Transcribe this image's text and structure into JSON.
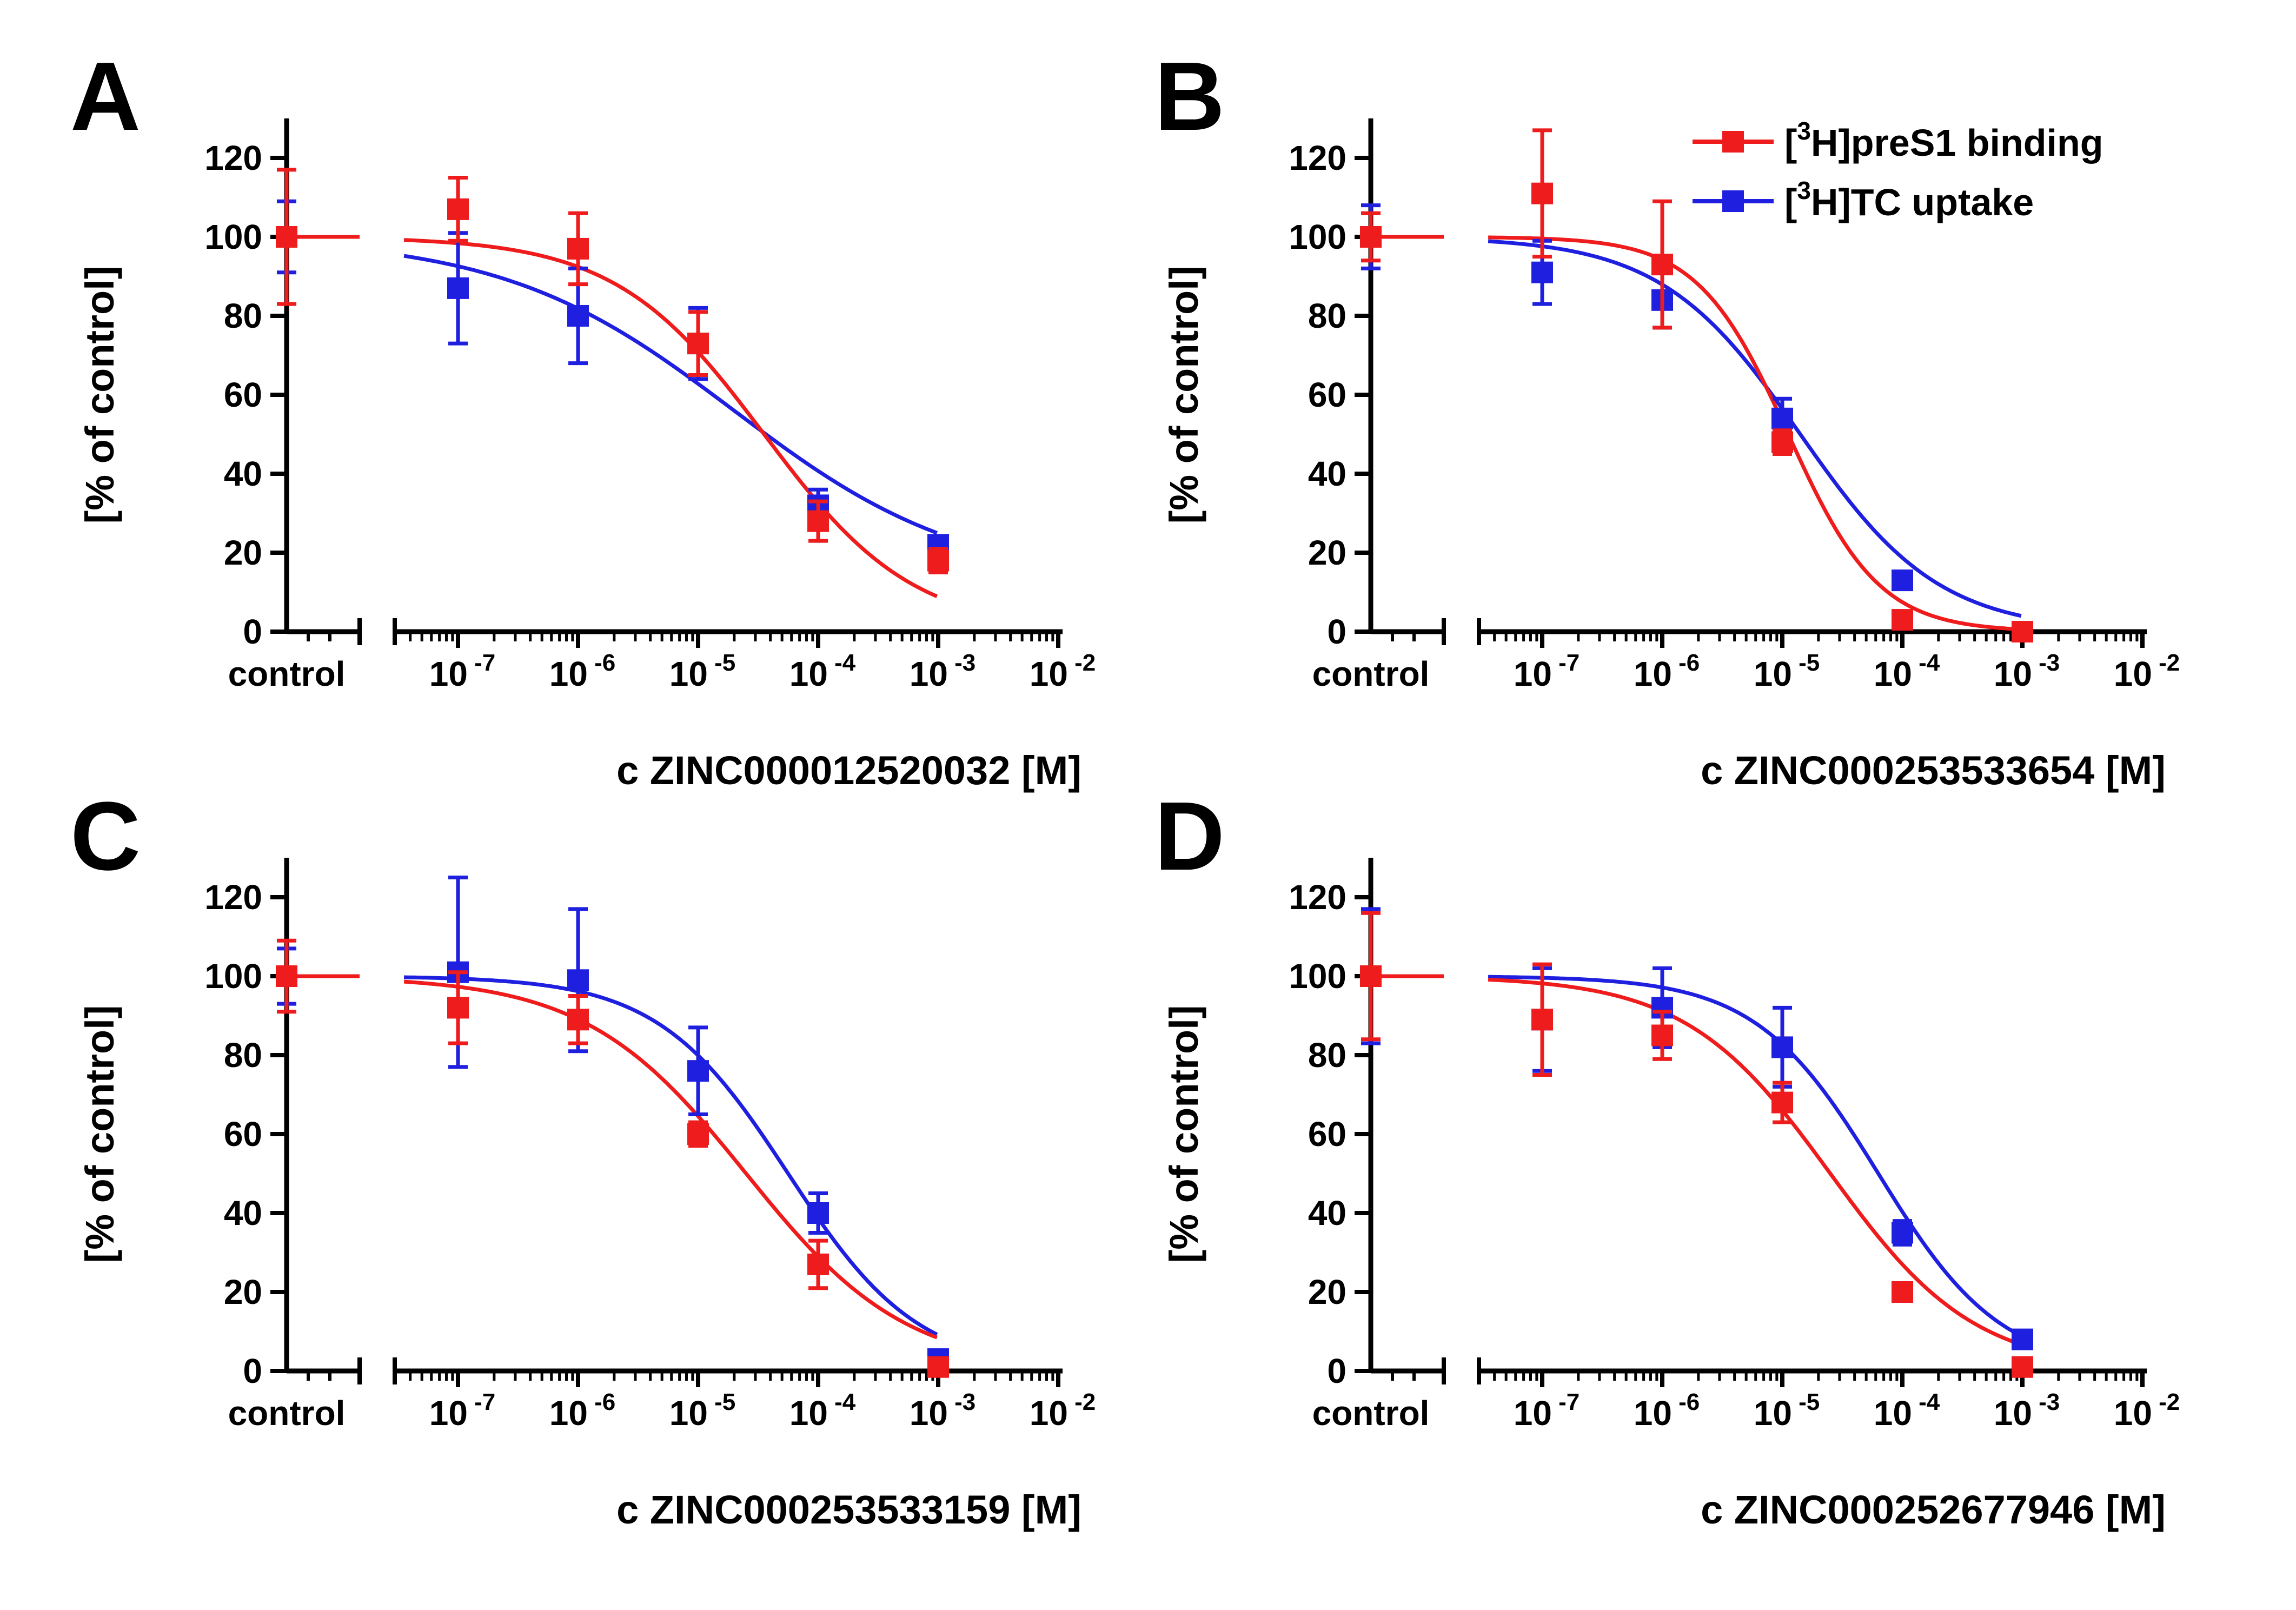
{
  "colors": {
    "red": "#ee1c1c",
    "blue": "#1f1fe0",
    "axis": "#000000"
  },
  "legend": {
    "red_label": {
      "bracket_open": "[",
      "sup": "3",
      "rest": "H]preS1 binding"
    },
    "blue_label": {
      "bracket_open": "[",
      "sup": "3",
      "rest": "H]TC uptake"
    }
  },
  "common": {
    "ylabel": "[% of control]",
    "y_ticks": [
      "0",
      "20",
      "40",
      "60",
      "80",
      "100",
      "120"
    ],
    "control_label": "control",
    "x_ticks": [
      {
        "base": "10",
        "exp": "-7"
      },
      {
        "base": "10",
        "exp": "-6"
      },
      {
        "base": "10",
        "exp": "-5"
      },
      {
        "base": "10",
        "exp": "-4"
      },
      {
        "base": "10",
        "exp": "-3"
      },
      {
        "base": "10",
        "exp": "-2"
      }
    ]
  },
  "chart_data": [
    {
      "panel": "A",
      "type": "scatter",
      "xlabel": "c ZINC000012520032 [M]",
      "ylabel": "[% of control]",
      "ylim": [
        0,
        130
      ],
      "xlim_log10": [
        -7.5,
        -2
      ],
      "control": {
        "red": {
          "y": 100,
          "err": 17
        },
        "blue": {
          "y": 100,
          "err": 9
        }
      },
      "series": [
        {
          "name": "[3H]preS1 binding",
          "color": "red",
          "points": [
            {
              "x": -7,
              "y": 107,
              "err": 8
            },
            {
              "x": -6,
              "y": 97,
              "err": 9
            },
            {
              "x": -5,
              "y": 73,
              "err": 8
            },
            {
              "x": -4,
              "y": 28,
              "err": 5
            },
            {
              "x": -3,
              "y": 18,
              "err": 3
            }
          ],
          "fit": {
            "top": 100,
            "bottom": 0,
            "logIC50": -4.45,
            "hill": 0.7
          }
        },
        {
          "name": "[3H]TC uptake",
          "color": "blue",
          "points": [
            {
              "x": -7,
              "y": 87,
              "err": 14
            },
            {
              "x": -6,
              "y": 80,
              "err": 12
            },
            {
              "x": -5,
              "y": 73,
              "err": 9
            },
            {
              "x": -4,
              "y": 32,
              "err": 4
            },
            {
              "x": -3,
              "y": 22,
              "err": 2
            }
          ],
          "fit": {
            "top": 100,
            "bottom": 12,
            "logIC50": -4.7,
            "hill": 0.45
          }
        }
      ]
    },
    {
      "panel": "B",
      "type": "scatter",
      "xlabel": "c ZINC000253533654 [M]",
      "ylabel": "[% of control]",
      "ylim": [
        0,
        130
      ],
      "xlim_log10": [
        -7.5,
        -2
      ],
      "control": {
        "red": {
          "y": 100,
          "err": 6
        },
        "blue": {
          "y": 100,
          "err": 8
        }
      },
      "series": [
        {
          "name": "[3H]preS1 binding",
          "color": "red",
          "points": [
            {
              "x": -7,
              "y": 111,
              "err": 16
            },
            {
              "x": -6,
              "y": 93,
              "err": 16
            },
            {
              "x": -5,
              "y": 48,
              "err": 3
            },
            {
              "x": -4,
              "y": 3,
              "err": 1
            },
            {
              "x": -3,
              "y": 0,
              "err": 1
            }
          ],
          "fit": {
            "top": 100,
            "bottom": 0,
            "logIC50": -4.95,
            "hill": 1.15
          }
        },
        {
          "name": "[3H]TC uptake",
          "color": "blue",
          "points": [
            {
              "x": -7,
              "y": 91,
              "err": 8
            },
            {
              "x": -6,
              "y": 84,
              "err": 7
            },
            {
              "x": -5,
              "y": 54,
              "err": 5
            },
            {
              "x": -4,
              "y": 13,
              "err": 2
            },
            {
              "x": -3,
              "y": 0,
              "err": 1
            }
          ],
          "fit": {
            "top": 100,
            "bottom": 0,
            "logIC50": -4.85,
            "hill": 0.75
          }
        }
      ]
    },
    {
      "panel": "C",
      "type": "scatter",
      "xlabel": "c ZINC000253533159 [M]",
      "ylabel": "[% of control]",
      "ylim": [
        0,
        130
      ],
      "xlim_log10": [
        -7.5,
        -2
      ],
      "control": {
        "red": {
          "y": 100,
          "err": 9
        },
        "blue": {
          "y": 100,
          "err": 7
        }
      },
      "series": [
        {
          "name": "[3H]preS1 binding",
          "color": "red",
          "points": [
            {
              "x": -7,
              "y": 92,
              "err": 9
            },
            {
              "x": -6,
              "y": 89,
              "err": 6
            },
            {
              "x": -5,
              "y": 60,
              "err": 3
            },
            {
              "x": -4,
              "y": 27,
              "err": 6
            },
            {
              "x": -3,
              "y": 1,
              "err": 1
            }
          ],
          "fit": {
            "top": 100,
            "bottom": 0,
            "logIC50": -4.6,
            "hill": 0.65
          }
        },
        {
          "name": "[3H]TC uptake",
          "color": "blue",
          "points": [
            {
              "x": -7,
              "y": 101,
              "err": 24
            },
            {
              "x": -6,
              "y": 99,
              "err": 18
            },
            {
              "x": -5,
              "y": 76,
              "err": 11
            },
            {
              "x": -4,
              "y": 40,
              "err": 5
            },
            {
              "x": -3,
              "y": 3,
              "err": 1
            }
          ],
          "fit": {
            "top": 100,
            "bottom": 0,
            "logIC50": -4.25,
            "hill": 0.8
          }
        }
      ]
    },
    {
      "panel": "D",
      "type": "scatter",
      "xlabel": "c ZINC000252677946 [M]",
      "ylabel": "[% of control]",
      "ylim": [
        0,
        130
      ],
      "xlim_log10": [
        -7.5,
        -2
      ],
      "control": {
        "red": {
          "y": 100,
          "err": 16
        },
        "blue": {
          "y": 100,
          "err": 17
        }
      },
      "series": [
        {
          "name": "[3H]preS1 binding",
          "color": "red",
          "points": [
            {
              "x": -7,
              "y": 89,
              "err": 14
            },
            {
              "x": -6,
              "y": 85,
              "err": 6
            },
            {
              "x": -5,
              "y": 68,
              "err": 5
            },
            {
              "x": -4,
              "y": 20,
              "err": 2
            },
            {
              "x": -3,
              "y": 1,
              "err": 1
            }
          ],
          "fit": {
            "top": 100,
            "bottom": 0,
            "logIC50": -4.6,
            "hill": 0.72
          }
        },
        {
          "name": "[3H]TC uptake",
          "color": "blue",
          "points": [
            {
              "x": -7,
              "y": 89,
              "err": 13
            },
            {
              "x": -6,
              "y": 92,
              "err": 10
            },
            {
              "x": -5,
              "y": 82,
              "err": 10
            },
            {
              "x": -4,
              "y": 35,
              "err": 3
            },
            {
              "x": -3,
              "y": 8,
              "err": 1
            }
          ],
          "fit": {
            "top": 100,
            "bottom": 0,
            "logIC50": -4.2,
            "hill": 0.85
          }
        }
      ]
    }
  ]
}
